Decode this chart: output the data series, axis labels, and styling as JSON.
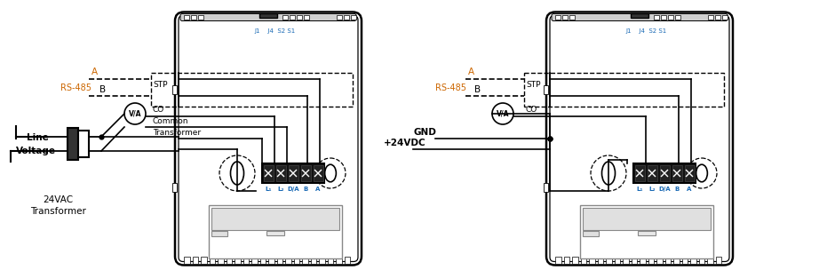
{
  "bg_color": "#ffffff",
  "line_color": "#000000",
  "blue_color": "#1a6ab5",
  "orange_color": "#cc6600",
  "gray_color": "#888888",
  "diagram1": {
    "label_J1": "J1    J4  S2 S1",
    "transformer_label1": "Line",
    "transformer_label2": "Voltage",
    "transformer_label3": "24VAC",
    "transformer_label4": "Transformer",
    "rs485_label": "RS-485",
    "line_A": "A",
    "line_B": "B",
    "line_STP": "STP",
    "line_CO": "CO",
    "line_Common": "Common",
    "line_Transformer": "Transformer",
    "terminal_labels": [
      "L₁",
      "L₂",
      "D/A",
      "B",
      "A"
    ]
  },
  "diagram2": {
    "label_J1": "J1    J4  S2 S1",
    "rs485_label": "RS-485",
    "line_A": "A",
    "line_B": "B",
    "line_STP": "STP",
    "line_CO": "CO",
    "gnd_label": "GND",
    "vdc_label": "+24VDC",
    "terminal_labels": [
      "L₁",
      "L₂",
      "D/A",
      "B",
      "A"
    ]
  }
}
